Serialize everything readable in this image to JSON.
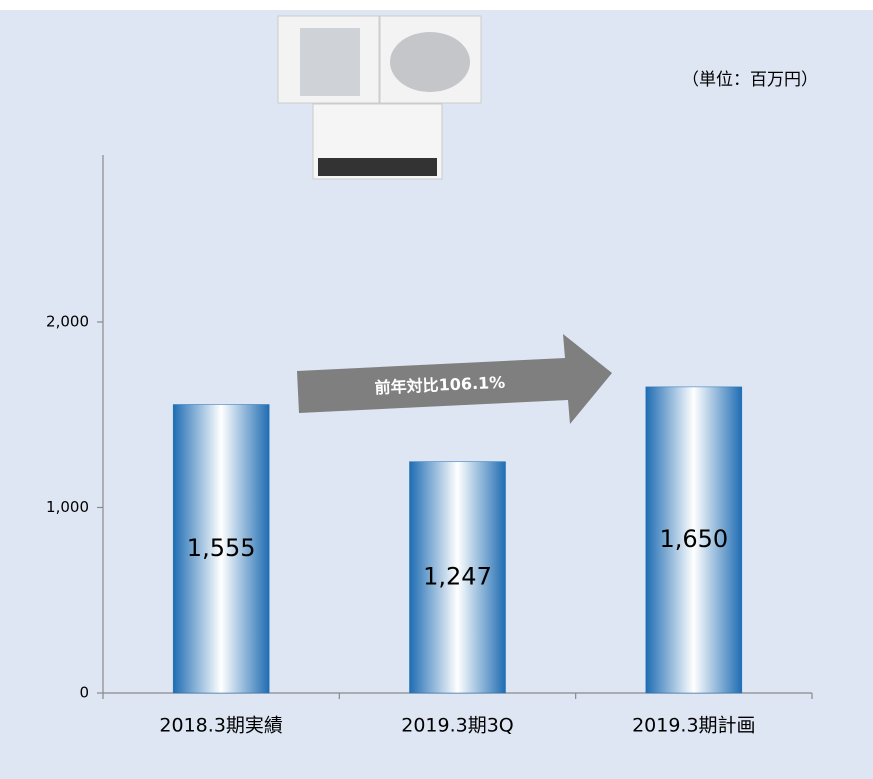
{
  "chart_data": {
    "type": "bar",
    "unit_note": "（単位：百万円）",
    "annotation": "前年対比106.1%",
    "categories": [
      "2018.3期実績",
      "2019.3期3Q",
      "2019.3期計画"
    ],
    "values": [
      1555,
      1247,
      1650
    ],
    "value_labels": [
      "1,555",
      "1,247",
      "1,650"
    ],
    "color": "#1f6db3",
    "ylim": [
      0,
      2900
    ],
    "yticks": [
      0,
      {
        "value": 1000,
        "label": "1,000"
      },
      {
        "value": 2000,
        "label": "2,000"
      }
    ],
    "grid": false
  }
}
